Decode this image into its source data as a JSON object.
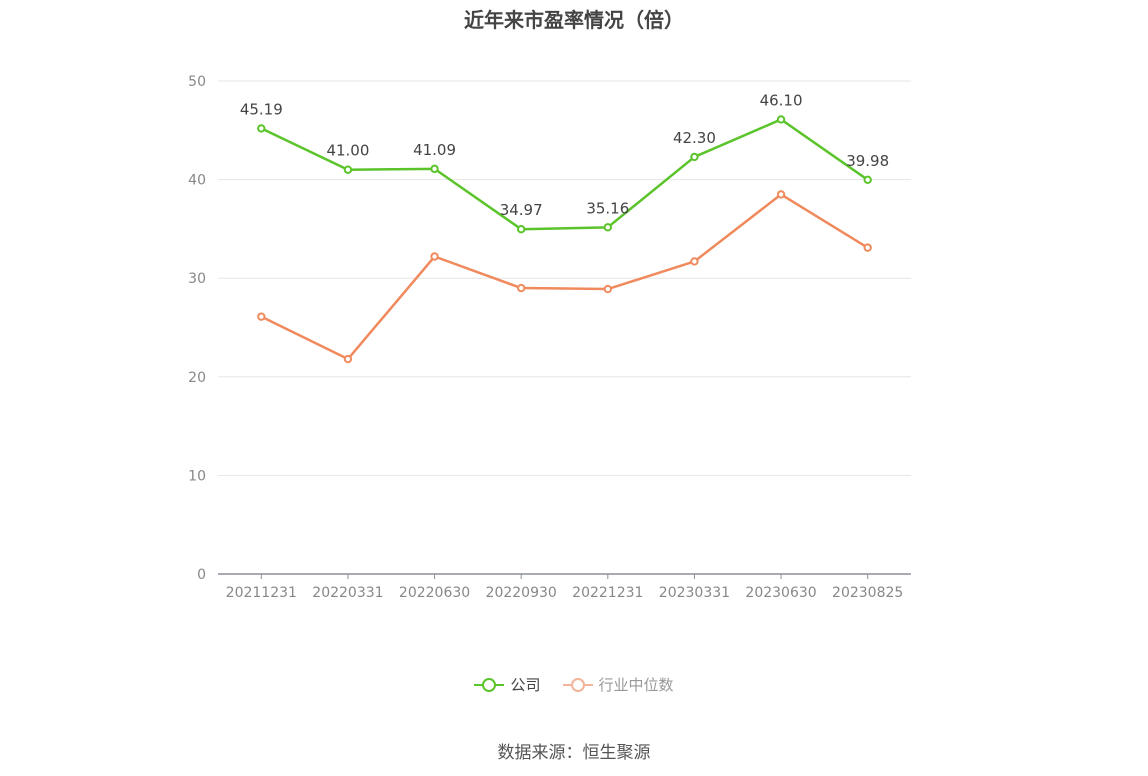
{
  "chart_data": {
    "type": "line",
    "title": "近年来市盈率情况（倍）",
    "categories": [
      "20211231",
      "20220331",
      "20220630",
      "20220930",
      "20221231",
      "20230331",
      "20230630",
      "20230825"
    ],
    "ylim": [
      0,
      50
    ],
    "yticks": [
      0,
      10,
      20,
      30,
      40,
      50
    ],
    "grid": true,
    "legend_position": "bottom-center",
    "series": [
      {
        "name": "公司",
        "color": "#5bc42b",
        "values": [
          45.19,
          41.0,
          41.09,
          34.97,
          35.16,
          42.3,
          46.1,
          39.98
        ],
        "labels": [
          "45.19",
          "41.00",
          "41.09",
          "34.97",
          "35.16",
          "42.30",
          "46.10",
          "39.98"
        ]
      },
      {
        "name": "行业中位数",
        "color": "#f08a5d",
        "values": [
          26.1,
          21.8,
          32.2,
          29.0,
          28.9,
          31.7,
          38.5,
          33.1
        ]
      }
    ]
  },
  "source": "数据来源：恒生聚源"
}
